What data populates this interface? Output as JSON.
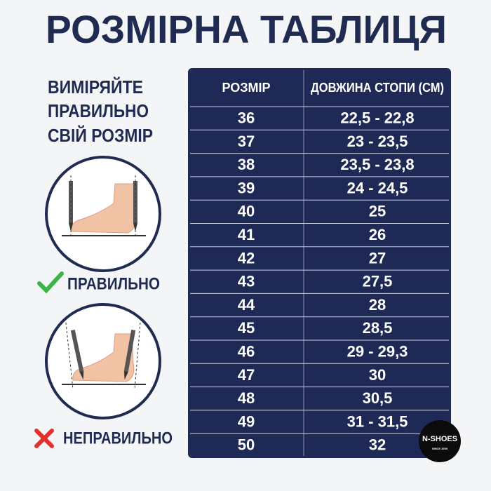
{
  "header": {
    "title": "РОЗМІРНА ТАБЛИЦЯ"
  },
  "guide": {
    "lines": [
      "ВИМІРЯЙТЕ",
      "ПРАВИЛЬНО",
      "СВІЙ РОЗМІР"
    ],
    "correct": "ПРАВИЛЬНО",
    "incorrect": "НЕПРАВИЛЬНО"
  },
  "table": {
    "columns": [
      "РОЗМІР",
      "ДОВЖИНА СТОПИ (СМ)"
    ],
    "rows": [
      [
        "36",
        "22,5 - 22,8"
      ],
      [
        "37",
        "23 - 23,5"
      ],
      [
        "38",
        "23,5 - 23,8"
      ],
      [
        "39",
        "24 - 24,5"
      ],
      [
        "40",
        "25"
      ],
      [
        "41",
        "26"
      ],
      [
        "42",
        "27"
      ],
      [
        "43",
        "27,5"
      ],
      [
        "44",
        "28"
      ],
      [
        "45",
        "28,5"
      ],
      [
        "46",
        "29 - 29,3"
      ],
      [
        "47",
        "30"
      ],
      [
        "48",
        "30,5"
      ],
      [
        "49",
        "31 - 31,5"
      ],
      [
        "50",
        "32"
      ]
    ]
  },
  "logo": {
    "name": "N-SHOES",
    "since": "SINCE 2000"
  }
}
